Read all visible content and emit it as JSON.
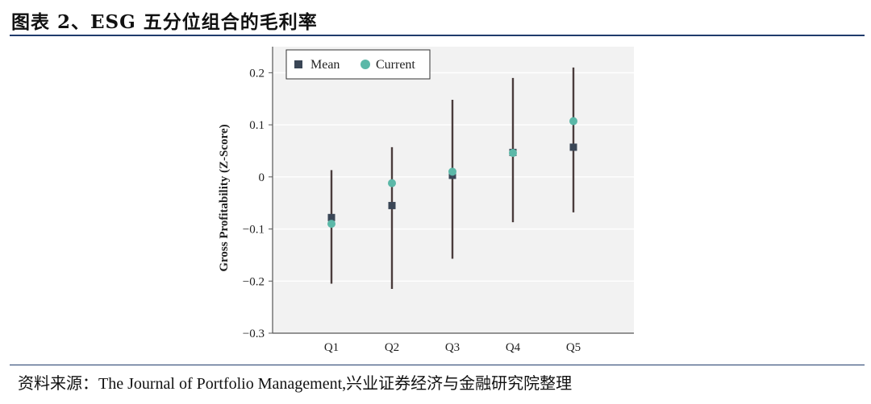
{
  "figure": {
    "title": "图表 2、ESG 五分位组合的毛利率",
    "source": "资料来源：The Journal of Portfolio Management,兴业证券经济与金融研究院整理"
  },
  "chart_data": {
    "type": "scatter",
    "title": "",
    "xlabel": "",
    "ylabel": "Gross Profitability (Z-Score)",
    "categories": [
      "Q1",
      "Q2",
      "Q3",
      "Q4",
      "Q5"
    ],
    "ylim": [
      -0.3,
      0.25
    ],
    "yticks": [
      0.2,
      0.1,
      0,
      -0.1,
      -0.2,
      -0.3
    ],
    "ytick_labels": [
      "0.2",
      "0.1",
      "0",
      "−0.1",
      "−0.2",
      "−0.3"
    ],
    "grid": true,
    "legend": {
      "placement": "top-left",
      "entries": [
        "Mean",
        "Current"
      ]
    },
    "series": [
      {
        "name": "Mean",
        "marker": "square",
        "color": "#3a4656",
        "values": [
          -0.078,
          -0.055,
          0.003,
          0.047,
          0.057
        ]
      },
      {
        "name": "Current",
        "marker": "circle",
        "color": "#5bb8a8",
        "values": [
          -0.09,
          -0.012,
          0.01,
          0.046,
          0.107
        ]
      }
    ],
    "ranges": [
      {
        "category": "Q1",
        "low": -0.205,
        "high": 0.013
      },
      {
        "category": "Q2",
        "low": -0.215,
        "high": 0.057
      },
      {
        "category": "Q3",
        "low": -0.157,
        "high": 0.148
      },
      {
        "category": "Q4",
        "low": -0.087,
        "high": 0.19
      },
      {
        "category": "Q5",
        "low": -0.068,
        "high": 0.21
      }
    ],
    "range_color": "#4a3c3c",
    "plot_background": "#f2f2f2"
  }
}
